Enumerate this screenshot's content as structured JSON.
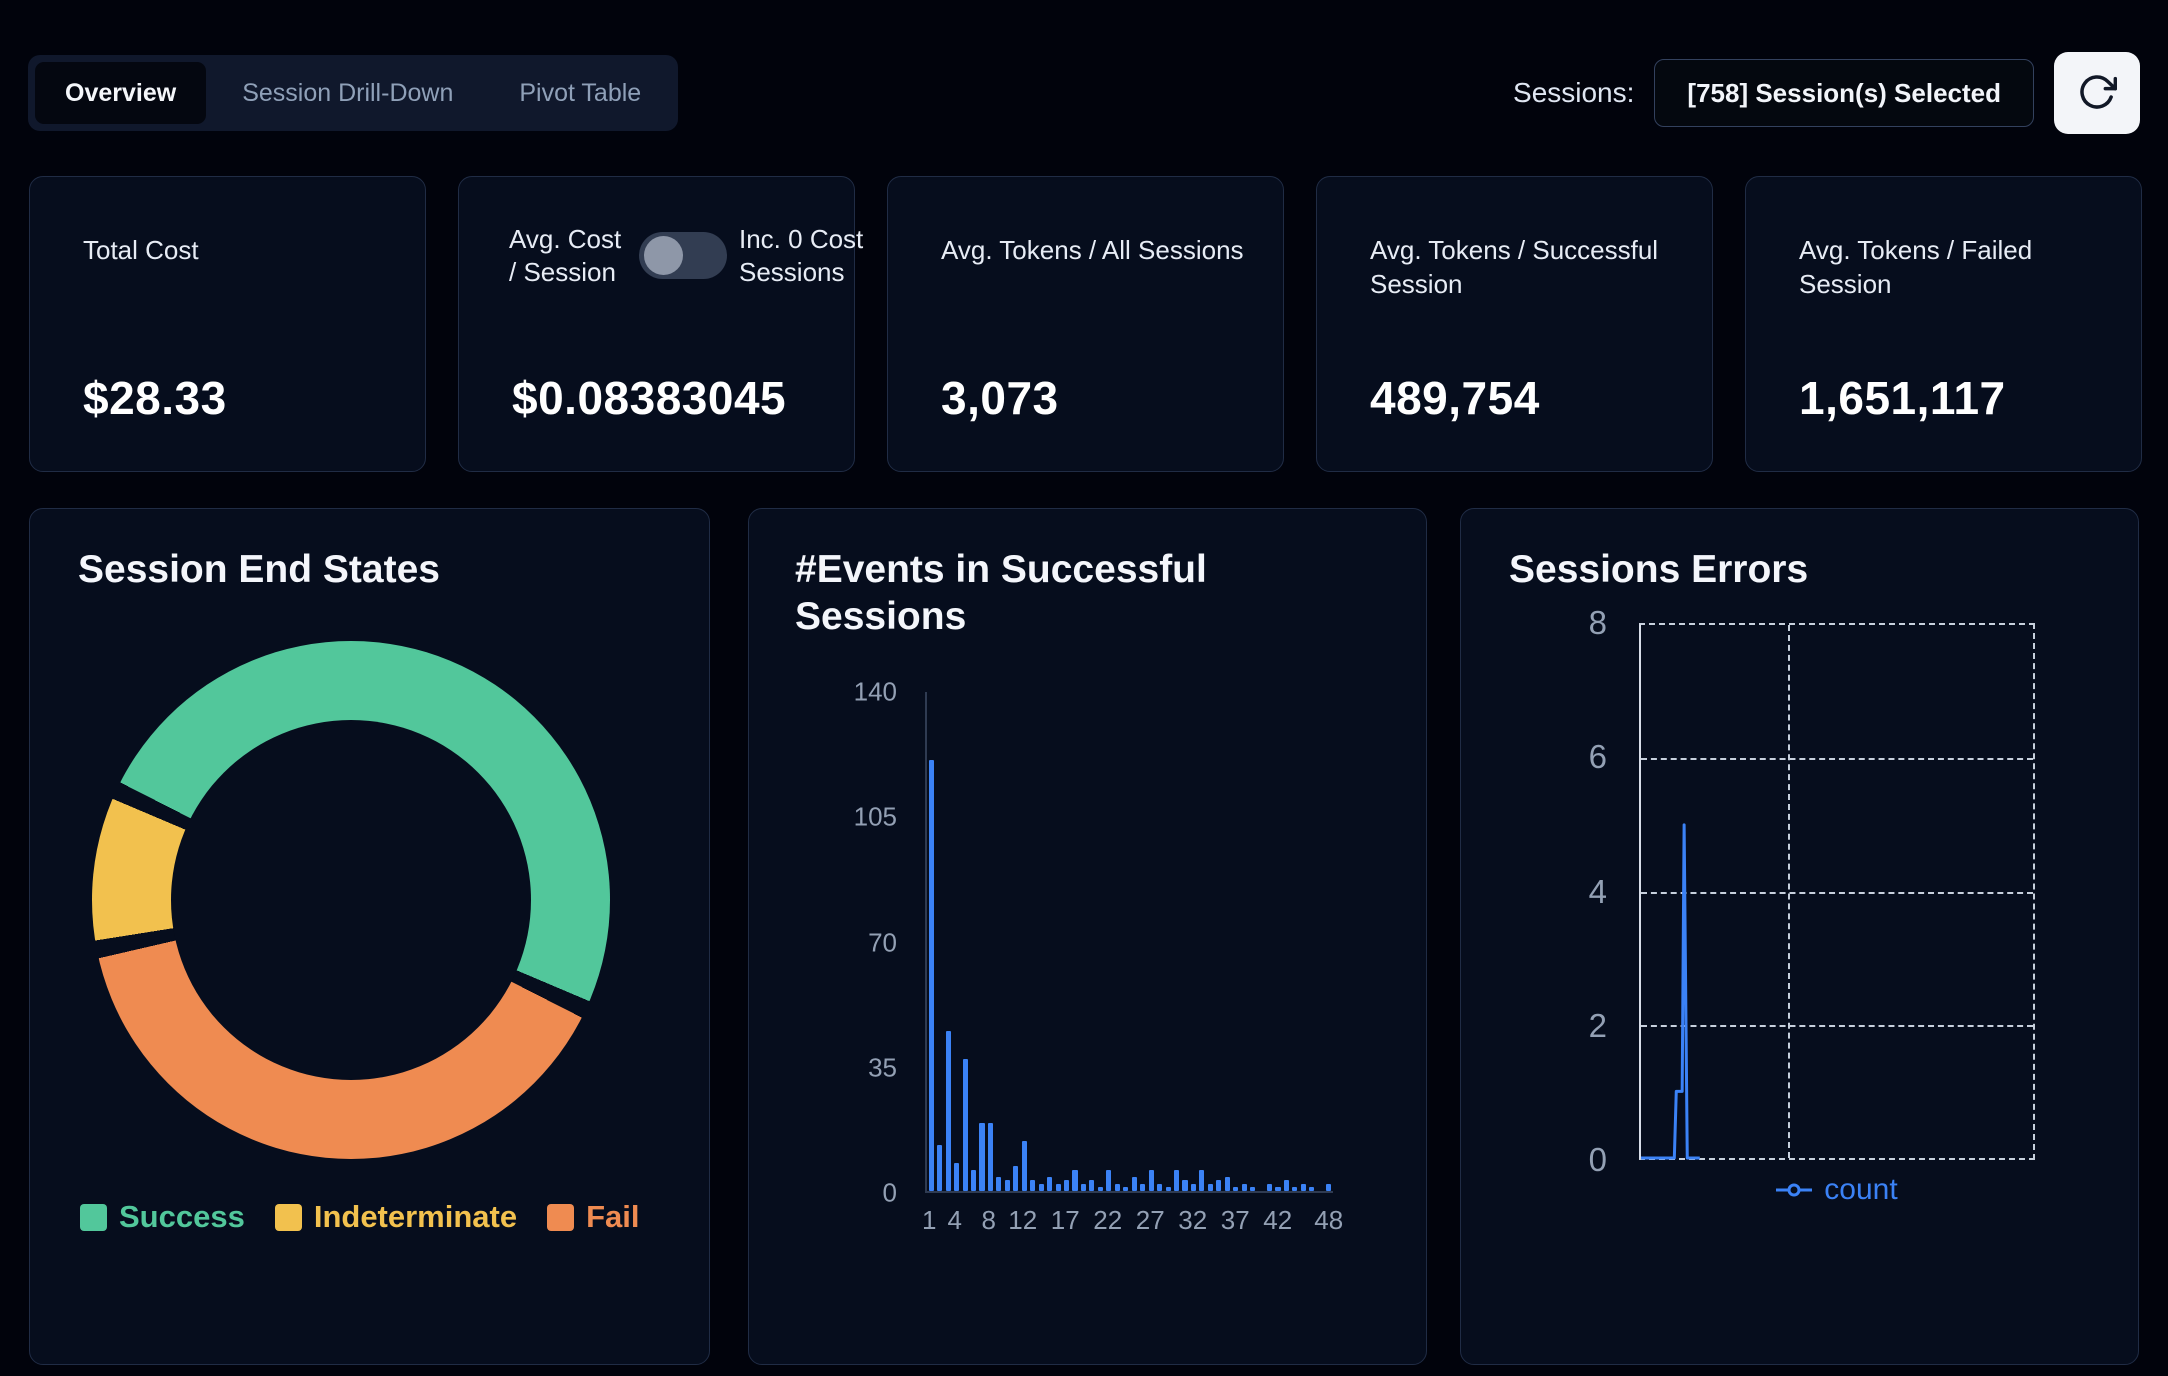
{
  "tabs": [
    {
      "label": "Overview",
      "active": true
    },
    {
      "label": "Session Drill-Down",
      "active": false
    },
    {
      "label": "Pivot Table",
      "active": false
    }
  ],
  "header": {
    "sessions_label": "Sessions:",
    "sessions_selected": "[758] Session(s) Selected"
  },
  "stats": {
    "total_cost": {
      "title": "Total Cost",
      "value": "$28.33"
    },
    "avg_cost": {
      "title": "Avg. Cost / Session",
      "toggle_label": "Inc. 0 Cost Sessions",
      "toggle_on": false,
      "value": "$0.08383045"
    },
    "avg_tokens_all": {
      "title": "Avg. Tokens / All Sessions",
      "value": "3,073"
    },
    "avg_tokens_success": {
      "title": "Avg. Tokens / Successful Session",
      "value": "489,754"
    },
    "avg_tokens_failed": {
      "title": "Avg. Tokens / Failed Session",
      "value": "1,651,117"
    }
  },
  "colors": {
    "panel_bg": "#060d1d",
    "accent_blue": "#3b82f6",
    "success": "#52c79b",
    "indeterminate": "#f2c14e",
    "fail": "#ef8b51"
  },
  "chart_data": [
    {
      "type": "pie",
      "title": "Session End States",
      "donut": true,
      "segments": [
        {
          "label": "Success",
          "value": 50,
          "color": "#52c79b"
        },
        {
          "label": "Indeterminate",
          "value": 10,
          "color": "#f2c14e"
        },
        {
          "label": "Fail",
          "value": 40,
          "color": "#ef8b51"
        }
      ],
      "draw_order": [
        "Success",
        "Fail",
        "Indeterminate"
      ],
      "start_angle_deg": 295,
      "legend_position": "bottom"
    },
    {
      "type": "bar",
      "title": "#Events in Successful Sessions",
      "x_start": 1,
      "values": [
        121,
        13,
        45,
        8,
        37,
        6,
        19,
        19,
        4,
        3,
        7,
        14,
        3,
        2,
        4,
        2,
        3,
        6,
        2,
        3,
        1,
        6,
        2,
        1,
        4,
        2,
        6,
        2,
        1,
        6,
        3,
        2,
        6,
        2,
        3,
        4,
        1,
        2,
        1,
        0,
        2,
        1,
        3,
        1,
        2,
        1,
        0,
        2
      ],
      "ylim": [
        0,
        140
      ],
      "yticks": [
        0,
        35,
        70,
        105,
        140
      ],
      "xticks": [
        1,
        4,
        8,
        12,
        17,
        22,
        27,
        32,
        37,
        42,
        48
      ],
      "bar_color": "#3b82f6",
      "xlabel": "",
      "ylabel": ""
    },
    {
      "type": "line",
      "title": "Sessions Errors",
      "series": [
        {
          "name": "count",
          "color": "#3b82f6",
          "points": [
            [
              0,
              0
            ],
            [
              0.85,
              0
            ],
            [
              0.9,
              1
            ],
            [
              1.05,
              1
            ],
            [
              1.1,
              5
            ],
            [
              1.18,
              0
            ],
            [
              1.5,
              0
            ]
          ]
        }
      ],
      "xlim": [
        0,
        10
      ],
      "ylim": [
        0,
        8
      ],
      "yticks": [
        0,
        2,
        4,
        6,
        8
      ],
      "xgrid": [
        3.74
      ],
      "grid": "dashed",
      "legend_position": "bottom"
    }
  ]
}
